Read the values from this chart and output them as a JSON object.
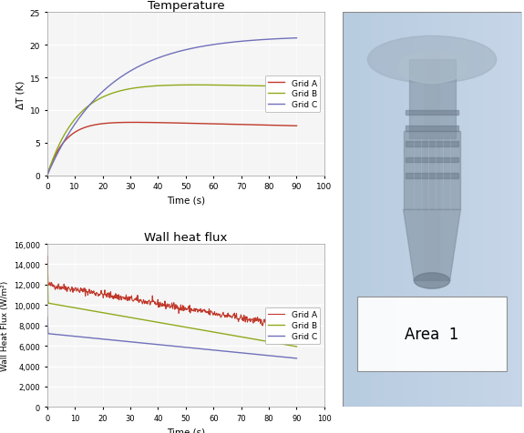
{
  "title_temp": "Temperature",
  "title_flux": "Wall heat flux",
  "xlabel": "Time (s)",
  "ylabel_temp": "ΔT (K)",
  "ylabel_flux": "Wall Heat Flux (W/m²)",
  "xlim": [
    0,
    100
  ],
  "ylim_temp": [
    0,
    25
  ],
  "ylim_flux": [
    0,
    16000
  ],
  "xticks": [
    0,
    10,
    20,
    30,
    40,
    50,
    60,
    70,
    80,
    90,
    100
  ],
  "yticks_temp": [
    0,
    5,
    10,
    15,
    20,
    25
  ],
  "yticks_flux": [
    0,
    2000,
    4000,
    6000,
    8000,
    10000,
    12000,
    14000,
    16000
  ],
  "legend_labels": [
    "Grid A",
    "Grid B",
    "Grid C"
  ],
  "color_A": "#c0392b",
  "color_B": "#8faa1c",
  "color_C": "#7070bb",
  "bg_color": "#ffffff",
  "plot_bg": "#f5f5f5",
  "area1_text": "Area  1",
  "image_bg": "#b8ccd8",
  "image_top": "#c5d8e8",
  "image_mid": "#a8bece",
  "turbine_color": "#8899aa",
  "turbine_dark": "#667788"
}
